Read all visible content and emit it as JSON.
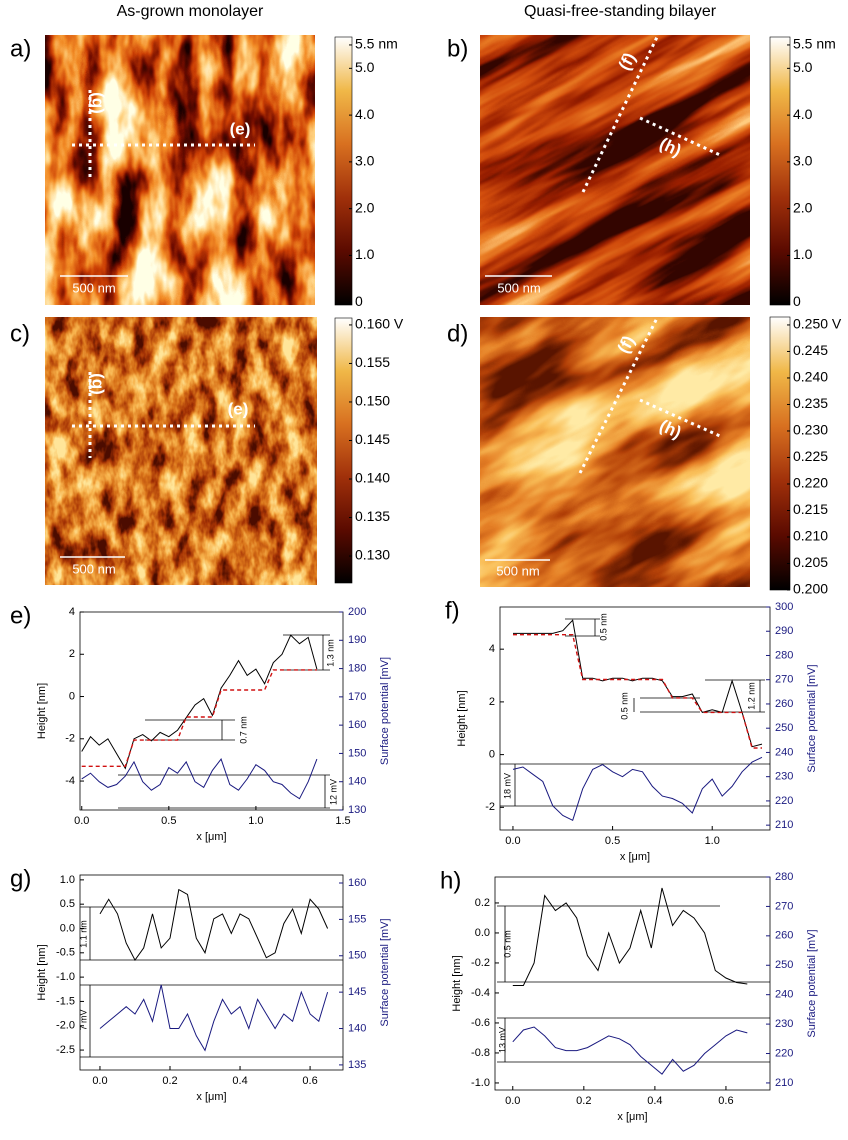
{
  "headers": [
    "As-grown monolayer",
    "Quasi-free-standing bilayer"
  ],
  "images": [
    {
      "panel": "a)",
      "scale_bar": "500 nm",
      "line_labels": [
        "(g)",
        "(e)"
      ],
      "colorbar": {
        "lim": [
          -0.06,
          5.67
        ],
        "ticks": [
          {
            "value": 5.5,
            "label": "5.5 nm"
          },
          {
            "value": 5,
            "label": "5.0"
          },
          {
            "value": 4,
            "label": "4.0"
          },
          {
            "value": 3,
            "label": "3.0"
          },
          {
            "value": 2,
            "label": "2.0"
          },
          {
            "value": 1,
            "label": "1.0"
          },
          0
        ]
      }
    },
    {
      "panel": "b)",
      "scale_bar": "500 nm",
      "line_labels": [
        "(f)",
        "(h)"
      ],
      "colorbar": {
        "lim": [
          -0.06,
          5.67
        ],
        "ticks": [
          {
            "value": 5.5,
            "label": "5.5 nm"
          },
          {
            "value": 5,
            "label": "5.0"
          },
          {
            "value": 4,
            "label": "4.0"
          },
          {
            "value": 3,
            "label": "3.0"
          },
          {
            "value": 2,
            "label": "2.0"
          },
          {
            "value": 1,
            "label": "1.0"
          },
          0
        ]
      }
    },
    {
      "panel": "c)",
      "scale_bar": "500 nm",
      "line_labels": [
        "(g)",
        "(e)"
      ],
      "colorbar": {
        "lim": [
          0.1265,
          0.1609
        ],
        "ticks": [
          {
            "value": 0.16,
            "label": "0.160 V"
          },
          {
            "value": 0.155,
            "label": "0.155"
          },
          {
            "value": 0.15,
            "label": "0.150"
          },
          0.145,
          {
            "value": 0.14,
            "label": "0.140"
          },
          0.135,
          {
            "value": 0.13,
            "label": "0.130"
          }
        ]
      }
    },
    {
      "panel": "d)",
      "scale_bar": "500 nm",
      "line_labels": [
        "(f)",
        "(h)"
      ],
      "colorbar": {
        "lim": [
          0.2,
          0.2515
        ],
        "ticks": [
          {
            "value": 0.25,
            "label": "0.250 V"
          },
          0.245,
          {
            "value": 0.24,
            "label": "0.240"
          },
          0.235,
          {
            "value": 0.23,
            "label": "0.230"
          },
          0.225,
          {
            "value": 0.22,
            "label": "0.220"
          },
          0.215,
          {
            "value": 0.21,
            "label": "0.210"
          },
          0.205,
          {
            "value": 0.2,
            "label": "0.200"
          }
        ]
      }
    }
  ],
  "chart_data": [
    {
      "type": "line",
      "panel": "e)",
      "ylabel": "Height [nm]",
      "y2label": "Surface potential [mV]",
      "xlabel": "x [μm]",
      "xlim": [
        -0.01,
        1.5
      ],
      "ylim": [
        -5.37,
        4.0
      ],
      "y2lim": [
        130,
        200
      ],
      "xticks": [
        {
          "value": 0,
          "label": "0.0"
        },
        0.5,
        {
          "value": 1,
          "label": "1.0"
        },
        1.5
      ],
      "yticks": [
        -4,
        -2,
        0,
        2,
        4
      ],
      "y2ticks": [
        130,
        140,
        150,
        160,
        170,
        180,
        190,
        200
      ],
      "x": [
        0,
        0.05,
        0.1,
        0.15,
        0.2,
        0.25,
        0.3,
        0.35,
        0.4,
        0.45,
        0.5,
        0.55,
        0.6,
        0.65,
        0.7,
        0.75,
        0.8,
        0.85,
        0.9,
        0.95,
        1.0,
        1.05,
        1.1,
        1.15,
        1.2,
        1.25,
        1.3,
        1.35
      ],
      "series": [
        {
          "color": "#000000",
          "values": [
            -2.6,
            -1.9,
            -2.3,
            -2.0,
            -2.7,
            -3.4,
            -2.0,
            -1.8,
            -2.1,
            -1.7,
            -1.9,
            -1.6,
            -1.0,
            -0.4,
            -0.1,
            -0.9,
            0.4,
            1.0,
            1.7,
            1.0,
            1.3,
            0.6,
            1.6,
            2.0,
            2.9,
            2.5,
            2.8,
            1.3
          ]
        },
        {
          "color": "#d01010",
          "linestyle": "dashed",
          "values": [
            -3.3,
            -3.3,
            -3.3,
            -3.3,
            -3.3,
            -3.3,
            -2.06,
            -2.06,
            -2.06,
            -2.06,
            -2.06,
            -2.06,
            -0.97,
            -0.97,
            -0.97,
            -0.97,
            0.31,
            0.31,
            0.31,
            0.31,
            0.31,
            0.31,
            1.26,
            1.26,
            1.26,
            1.26,
            1.26,
            1.26
          ]
        },
        {
          "color": "#1a1a80",
          "axis": "y2",
          "values": [
            141,
            143,
            140,
            138,
            139,
            142,
            147,
            140,
            137,
            139,
            145,
            143,
            147,
            140,
            138,
            144,
            148,
            139,
            137,
            141,
            146,
            144,
            140,
            139,
            136,
            134,
            140,
            148
          ]
        }
      ],
      "annotations": [
        "1.3 nm",
        "0.7 nm",
        "12 mV"
      ]
    },
    {
      "type": "line",
      "panel": "f)",
      "ylabel": "Height [nm]",
      "y2label": "Surface potential [mV]",
      "xlabel": "x [μm]",
      "xlim": [
        -0.065,
        1.29
      ],
      "ylim": [
        -2.86,
        5.6
      ],
      "y2lim": [
        208,
        300
      ],
      "xticks": [
        {
          "value": 0,
          "label": "0.0"
        },
        0.5,
        {
          "value": 1,
          "label": "1.0"
        }
      ],
      "yticks": [
        -2,
        0,
        2,
        4
      ],
      "y2ticks": [
        210,
        220,
        230,
        240,
        250,
        260,
        270,
        280,
        290,
        300
      ],
      "x": [
        0,
        0.05,
        0.1,
        0.15,
        0.2,
        0.25,
        0.3,
        0.35,
        0.4,
        0.45,
        0.5,
        0.55,
        0.6,
        0.65,
        0.7,
        0.75,
        0.8,
        0.85,
        0.9,
        0.95,
        1.0,
        1.05,
        1.1,
        1.15,
        1.2,
        1.25
      ],
      "series": [
        {
          "color": "#000000",
          "values": [
            4.6,
            4.6,
            4.6,
            4.6,
            4.6,
            4.7,
            5.1,
            2.9,
            2.9,
            2.8,
            2.9,
            2.9,
            2.8,
            2.9,
            2.9,
            2.8,
            2.2,
            2.2,
            2.3,
            1.6,
            1.7,
            1.6,
            2.8,
            1.6,
            0.3,
            0.4
          ]
        },
        {
          "color": "#d01010",
          "linestyle": "dashed",
          "values": [
            4.55,
            4.55,
            4.55,
            4.55,
            4.55,
            4.55,
            4.55,
            2.85,
            2.85,
            2.85,
            2.85,
            2.85,
            2.85,
            2.85,
            2.85,
            2.85,
            2.15,
            2.15,
            2.15,
            1.6,
            1.6,
            1.6,
            1.6,
            1.6,
            0.25,
            0.25
          ]
        },
        {
          "color": "#1a1a80",
          "axis": "y2",
          "values": [
            233,
            234,
            231,
            228,
            218,
            214,
            212,
            225,
            233,
            235,
            232,
            230,
            233,
            232,
            226,
            222,
            221,
            219,
            215,
            225,
            229,
            222,
            226,
            232,
            236,
            238
          ]
        }
      ],
      "annotations": [
        "0.5 nm",
        "0.5 nm",
        "1.2 nm",
        "18 mV"
      ]
    },
    {
      "type": "line",
      "panel": "g)",
      "ylabel": "Height [nm]",
      "y2label": "Surface potential [mV]",
      "xlabel": "x [μm]",
      "xlim": [
        -0.057,
        0.694
      ],
      "ylim": [
        -2.91,
        1.1
      ],
      "y2lim": [
        134.3,
        161.1
      ],
      "xticks": [
        {
          "value": 0,
          "label": "0.0"
        },
        0.2,
        0.4,
        0.6
      ],
      "yticks": [
        {
          "value": 1,
          "label": "1.0"
        },
        0.5,
        {
          "value": 0,
          "label": "0.0"
        },
        -0.5,
        {
          "value": -1,
          "label": "-1.0"
        },
        -1.5,
        {
          "value": -2,
          "label": "-2.0"
        },
        -2.5
      ],
      "y2ticks": [
        135,
        140,
        145,
        150,
        155,
        160
      ],
      "x": [
        0,
        0.025,
        0.05,
        0.075,
        0.1,
        0.125,
        0.15,
        0.175,
        0.2,
        0.225,
        0.25,
        0.275,
        0.3,
        0.325,
        0.35,
        0.375,
        0.4,
        0.425,
        0.45,
        0.475,
        0.5,
        0.525,
        0.55,
        0.575,
        0.6,
        0.625,
        0.65
      ],
      "series": [
        {
          "color": "#000000",
          "values": [
            0.3,
            0.6,
            0.3,
            -0.3,
            -0.65,
            -0.4,
            0.3,
            -0.4,
            -0.2,
            0.8,
            0.7,
            -0.2,
            -0.5,
            0.2,
            0.3,
            -0.1,
            0.3,
            0.2,
            -0.2,
            -0.6,
            -0.5,
            0.1,
            0.4,
            -0.1,
            0.6,
            0.4,
            0.0
          ]
        },
        {
          "color": "#1a1a80",
          "axis": "y2",
          "values": [
            140,
            141,
            142,
            143,
            142,
            144,
            141,
            146,
            140,
            140,
            142,
            139,
            137,
            141,
            144,
            142,
            143,
            140,
            144,
            142,
            140,
            142,
            141,
            145,
            142,
            141,
            145
          ]
        }
      ],
      "annotations": [
        "1.1 nm",
        "7 mV"
      ]
    },
    {
      "type": "line",
      "panel": "h)",
      "ylabel": "Height [nm]",
      "y2label": "Surface potential [mV]",
      "xlabel": "x [μm]",
      "xlim": [
        -0.05,
        0.724
      ],
      "ylim": [
        -1.047,
        0.373
      ],
      "y2lim": [
        207.6,
        280
      ],
      "xticks": [
        {
          "value": 0,
          "label": "0.0"
        },
        0.2,
        0.4,
        0.6
      ],
      "yticks": [
        0.2,
        {
          "value": 0,
          "label": "0.0"
        },
        -0.2,
        -0.4,
        -0.6,
        -0.8,
        {
          "value": -1,
          "label": "-1.0"
        }
      ],
      "y2ticks": [
        210,
        220,
        230,
        240,
        250,
        260,
        270,
        280
      ],
      "x": [
        0,
        0.03,
        0.06,
        0.09,
        0.12,
        0.15,
        0.18,
        0.21,
        0.24,
        0.27,
        0.3,
        0.33,
        0.36,
        0.39,
        0.42,
        0.45,
        0.48,
        0.51,
        0.54,
        0.57,
        0.6,
        0.63,
        0.66
      ],
      "series": [
        {
          "color": "#000000",
          "values": [
            -0.35,
            -0.35,
            -0.2,
            0.25,
            0.15,
            0.2,
            0.1,
            -0.15,
            -0.25,
            0.0,
            -0.2,
            -0.1,
            0.15,
            -0.1,
            0.3,
            0.05,
            0.15,
            0.1,
            0.0,
            -0.25,
            -0.3,
            -0.33,
            -0.34
          ]
        },
        {
          "color": "#1a1a80",
          "axis": "y2",
          "values": [
            224,
            228,
            229,
            226,
            222,
            221,
            221,
            222,
            224,
            226,
            225,
            223,
            219,
            216,
            213,
            218,
            214,
            216,
            220,
            223,
            226,
            228,
            227
          ]
        }
      ],
      "annotations": [
        "0.5 nm",
        "13 mV"
      ]
    }
  ]
}
